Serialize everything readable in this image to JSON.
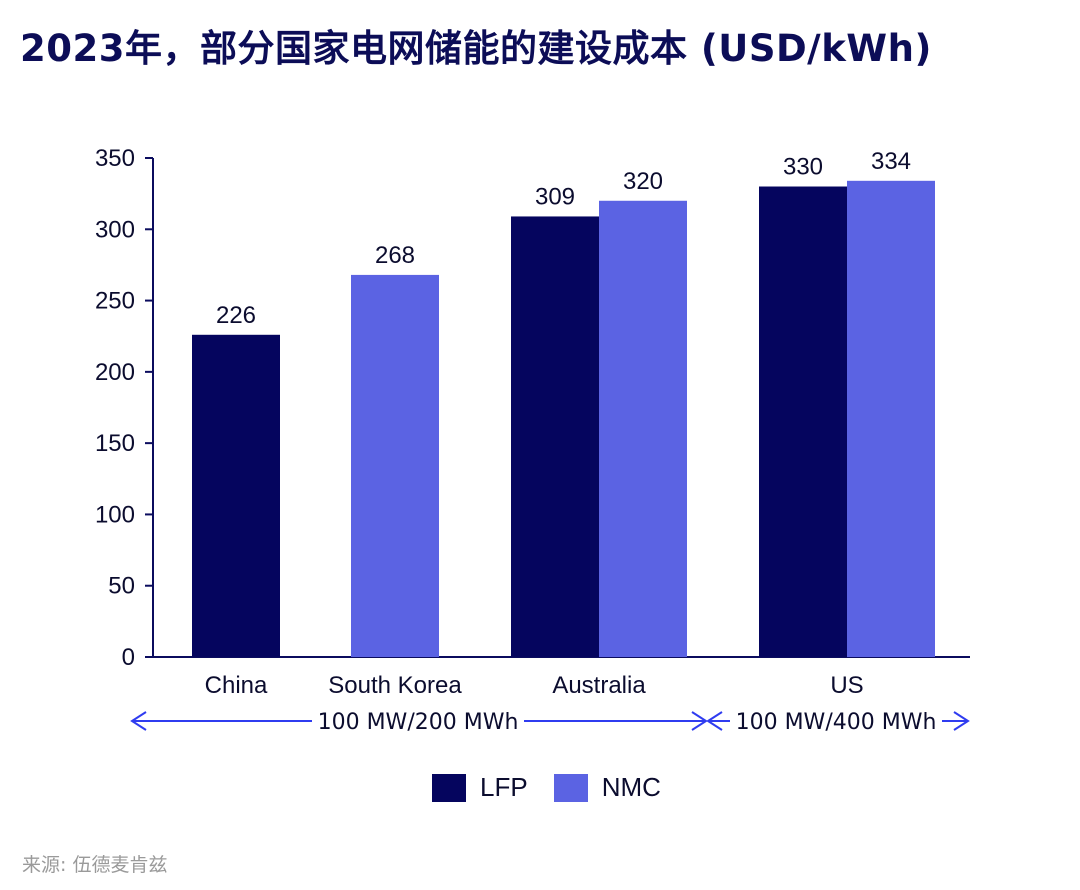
{
  "title": "2023年，部分国家电网储能的建设成本 (USD/kWh)",
  "source": "来源: 伍德麦肯兹",
  "colors": {
    "LFP": "#05055e",
    "NMC": "#5b63e3",
    "axis": "#0b0c5e",
    "arrow": "#2f3cf0"
  },
  "chart_data": {
    "type": "bar",
    "categories": [
      "China",
      "South Korea",
      "Australia",
      "US"
    ],
    "series": [
      {
        "name": "LFP",
        "values": [
          226,
          null,
          309,
          330
        ]
      },
      {
        "name": "NMC",
        "values": [
          null,
          268,
          320,
          334
        ]
      }
    ],
    "ylim": [
      0,
      350
    ],
    "yticks": [
      "0",
      "50",
      "100",
      "150",
      "200",
      "250",
      "300",
      "350"
    ],
    "legend": [
      "LFP",
      "NMC"
    ],
    "legend_position": "bottom",
    "grid": false,
    "ranges": [
      {
        "label": "100 MW/200 MWh",
        "categories": [
          "China",
          "South Korea",
          "Australia"
        ]
      },
      {
        "label": "100 MW/400 MWh",
        "categories": [
          "US"
        ]
      }
    ]
  }
}
